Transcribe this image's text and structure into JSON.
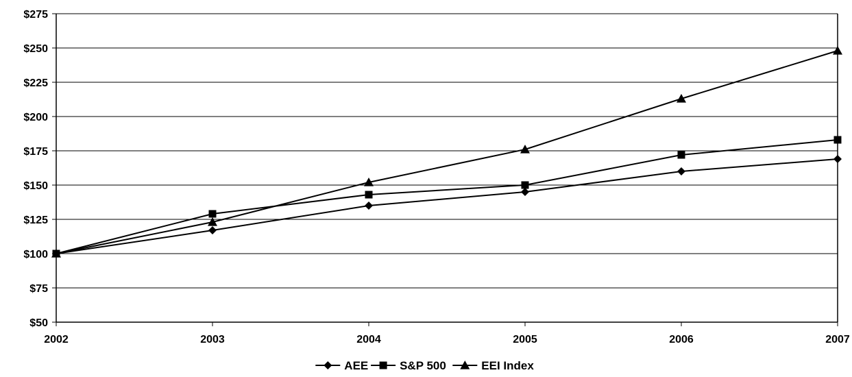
{
  "chart_data": {
    "type": "line",
    "title": "",
    "xlabel": "",
    "ylabel": "",
    "x": [
      "2002",
      "2003",
      "2004",
      "2005",
      "2006",
      "2007"
    ],
    "ylim": [
      50,
      275
    ],
    "yticks": [
      50,
      75,
      100,
      125,
      150,
      175,
      200,
      225,
      250,
      275
    ],
    "ytick_labels": [
      "$50",
      "$75",
      "$100",
      "$125",
      "$150",
      "$175",
      "$200",
      "$225",
      "$250",
      "$275"
    ],
    "grid": "horizontal",
    "legend_position": "bottom-center",
    "series": [
      {
        "name": "AEE",
        "marker": "diamond",
        "color": "#000000",
        "values": [
          100,
          117,
          135,
          145,
          160,
          169
        ]
      },
      {
        "name": "S&P 500",
        "marker": "square",
        "color": "#000000",
        "values": [
          100,
          129,
          143,
          150,
          172,
          183
        ]
      },
      {
        "name": "EEI Index",
        "marker": "triangle",
        "color": "#000000",
        "values": [
          100,
          123,
          152,
          176,
          213,
          248
        ]
      }
    ]
  }
}
